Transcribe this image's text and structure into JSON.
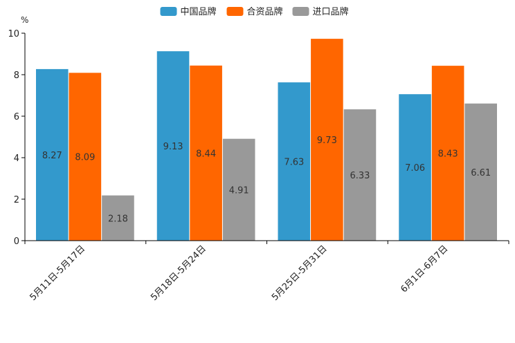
{
  "chart_data": {
    "type": "bar",
    "unit": "%",
    "categories": [
      "5月11日-5月17日",
      "5月18日-5月24日",
      "5月25日-5月31日",
      "6月1日-6月7日"
    ],
    "series": [
      {
        "name": "中国品牌",
        "color": "#3399cc",
        "values": [
          8.27,
          9.13,
          7.63,
          7.06
        ]
      },
      {
        "name": "合资品牌",
        "color": "#ff6600",
        "values": [
          8.09,
          8.44,
          9.73,
          8.43
        ]
      },
      {
        "name": "进口品牌",
        "color": "#999999",
        "values": [
          2.18,
          4.91,
          6.33,
          6.61
        ]
      }
    ],
    "ylim": [
      0,
      10
    ],
    "yticks": [
      0,
      2,
      4,
      6,
      8,
      10
    ],
    "legend_position": "top-center",
    "grid": false
  }
}
